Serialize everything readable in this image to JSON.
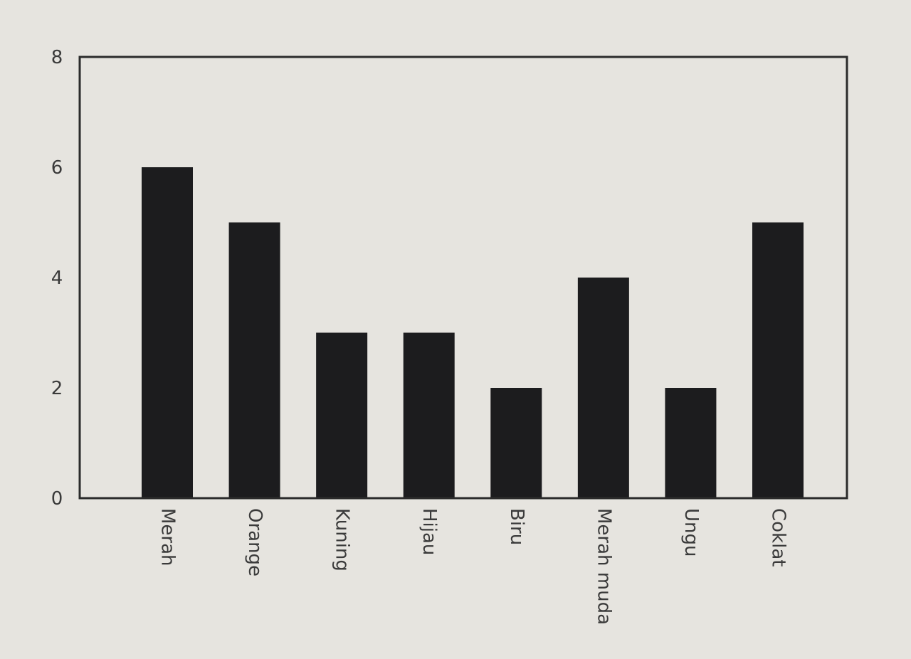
{
  "chart_data": {
    "type": "bar",
    "title": "",
    "xlabel": "",
    "ylabel": "",
    "categories": [
      "Merah",
      "Orange",
      "Kuning",
      "Hijau",
      "Biru",
      "Merah muda",
      "Ungu",
      "Coklat"
    ],
    "values": [
      6,
      5,
      3,
      3,
      2,
      4,
      2,
      5
    ],
    "ylim": [
      0,
      8
    ],
    "yticks": [
      "0",
      "2",
      "4",
      "6",
      "8"
    ],
    "grid": false,
    "legend": "none",
    "bar_color": "#1c1c1e",
    "x_tick_rotation": "vertical"
  }
}
